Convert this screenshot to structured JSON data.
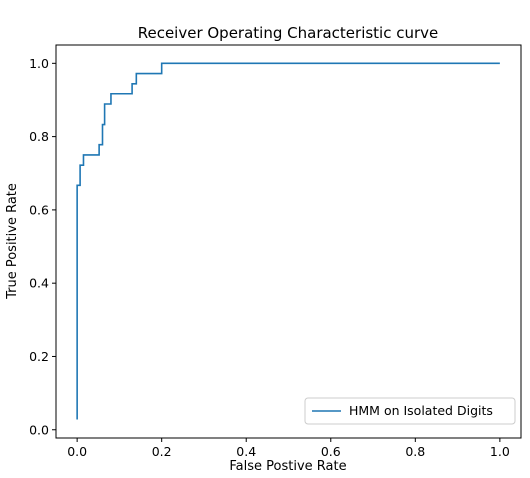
{
  "chart_data": {
    "type": "line",
    "title": "Receiver Operating Characteristic curve",
    "xlabel": "False Postive Rate",
    "ylabel": "True Positive Rate",
    "xlim": [
      -0.05,
      1.05
    ],
    "ylim": [
      -0.0225,
      1.05
    ],
    "xticks": [
      0.0,
      0.2,
      0.4,
      0.6,
      0.8,
      1.0
    ],
    "yticks": [
      0.0,
      0.2,
      0.4,
      0.6,
      0.8,
      1.0
    ],
    "xtick_labels": [
      "0.0",
      "0.2",
      "0.4",
      "0.6",
      "0.8",
      "1.0"
    ],
    "ytick_labels": [
      "0.0",
      "0.2",
      "0.4",
      "0.6",
      "0.8",
      "1.0"
    ],
    "grid": false,
    "legend_position": "lower-right",
    "series": [
      {
        "name": "HMM on Isolated Digits",
        "color": "#1f77b4",
        "drawstyle": "steps-post",
        "x": [
          0.0,
          0.0,
          0.0,
          0.007,
          0.007,
          0.015,
          0.015,
          0.052,
          0.052,
          0.06,
          0.06,
          0.065,
          0.065,
          0.08,
          0.08,
          0.13,
          0.13,
          0.14,
          0.14,
          0.2,
          0.2,
          1.0
        ],
        "y": [
          0.028,
          0.667,
          0.667,
          0.667,
          0.722,
          0.722,
          0.75,
          0.75,
          0.778,
          0.778,
          0.833,
          0.833,
          0.889,
          0.889,
          0.917,
          0.917,
          0.944,
          0.944,
          0.972,
          0.972,
          1.0,
          1.0
        ]
      }
    ]
  }
}
